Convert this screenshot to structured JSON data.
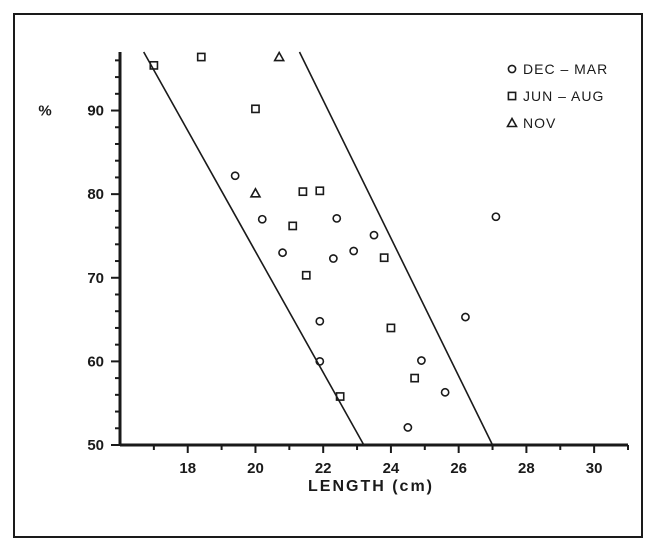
{
  "chart_data": {
    "type": "scatter",
    "xlabel": "LENGTH (cm)",
    "ylabel": "%",
    "xlim": [
      16,
      31
    ],
    "ylim": [
      50,
      97
    ],
    "x_ticks": [
      18,
      20,
      22,
      24,
      26,
      28,
      30
    ],
    "y_ticks": [
      50,
      60,
      70,
      80,
      90
    ],
    "grid": false,
    "legend_position": "top-right",
    "series": [
      {
        "name": "DEC – MAR",
        "marker": "circle",
        "points": [
          [
            19.4,
            82.2
          ],
          [
            20.2,
            77.0
          ],
          [
            20.8,
            73.0
          ],
          [
            21.9,
            64.8
          ],
          [
            21.9,
            60.0
          ],
          [
            22.3,
            72.3
          ],
          [
            22.4,
            77.1
          ],
          [
            22.9,
            73.2
          ],
          [
            23.5,
            75.1
          ],
          [
            24.5,
            52.1
          ],
          [
            24.9,
            60.1
          ],
          [
            25.6,
            56.3
          ],
          [
            26.2,
            65.3
          ],
          [
            27.1,
            77.3
          ]
        ]
      },
      {
        "name": "JUN – AUG",
        "marker": "square",
        "points": [
          [
            17.0,
            95.4
          ],
          [
            18.4,
            96.4
          ],
          [
            20.0,
            90.2
          ],
          [
            21.1,
            76.2
          ],
          [
            21.4,
            80.3
          ],
          [
            21.5,
            70.3
          ],
          [
            21.9,
            80.4
          ],
          [
            22.5,
            55.8
          ],
          [
            23.8,
            72.4
          ],
          [
            24.0,
            64.0
          ],
          [
            24.7,
            58.0
          ]
        ]
      },
      {
        "name": "NOV",
        "marker": "triangle",
        "points": [
          [
            20.0,
            80.1
          ],
          [
            20.7,
            96.4
          ]
        ]
      }
    ],
    "lines": [
      {
        "x": [
          16.7,
          23.2
        ],
        "y": [
          97,
          50
        ]
      },
      {
        "x": [
          21.3,
          27.0
        ],
        "y": [
          97,
          50
        ]
      }
    ]
  }
}
